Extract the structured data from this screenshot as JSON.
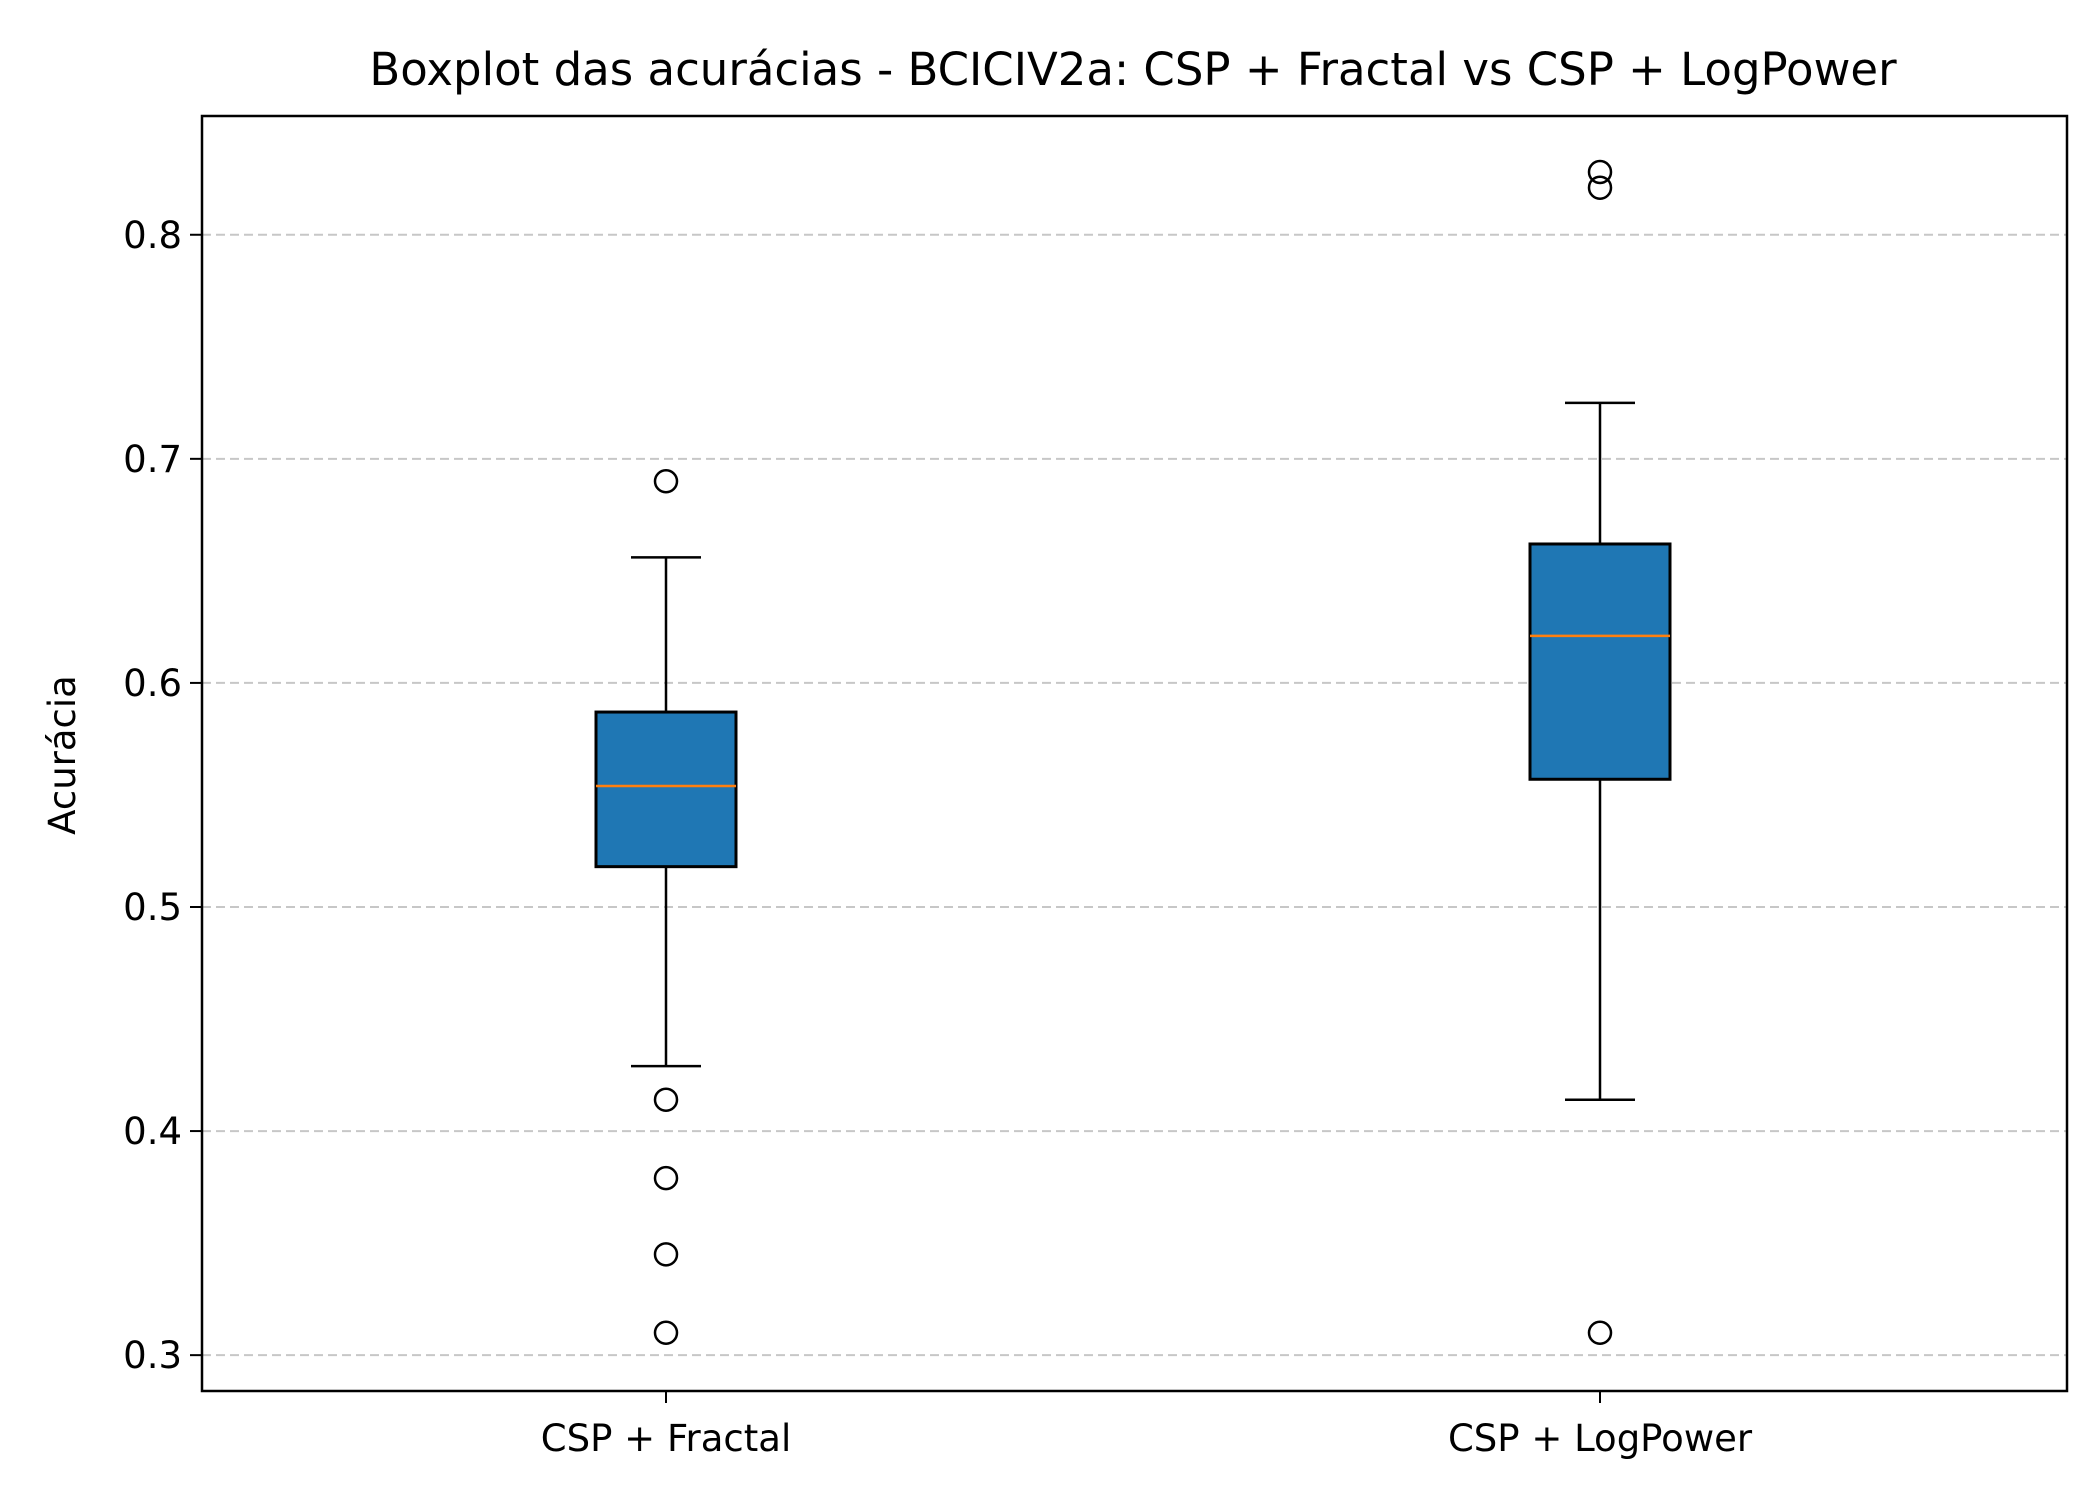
{
  "chart_data": {
    "type": "box",
    "title": "Boxplot das acurácias - BCICIV2a: CSP + Fractal vs CSP + LogPower",
    "xlabel": "",
    "ylabel": "Acurácia",
    "ylim": [
      0.284,
      0.853
    ],
    "yticks": [
      0.3,
      0.4,
      0.5,
      0.6,
      0.7,
      0.8
    ],
    "ytick_labels": [
      "0.3",
      "0.4",
      "0.5",
      "0.6",
      "0.7",
      "0.8"
    ],
    "grid": "horizontal dashed",
    "categories": [
      "CSP + Fractal",
      "CSP + LogPower"
    ],
    "boxes": [
      {
        "category": "CSP + Fractal",
        "whisker_low": 0.429,
        "q1": 0.518,
        "median": 0.554,
        "q3": 0.587,
        "whisker_high": 0.656,
        "outliers": [
          0.69,
          0.414,
          0.379,
          0.345,
          0.31
        ]
      },
      {
        "category": "CSP + LogPower",
        "whisker_low": 0.414,
        "q1": 0.557,
        "median": 0.621,
        "q3": 0.662,
        "whisker_high": 0.725,
        "outliers": [
          0.828,
          0.821,
          0.31
        ]
      }
    ],
    "colors": {
      "box_fill": "#1f77b4",
      "median": "#ff7f0e",
      "grid": "#b0b0b0",
      "edge": "#000000"
    }
  }
}
